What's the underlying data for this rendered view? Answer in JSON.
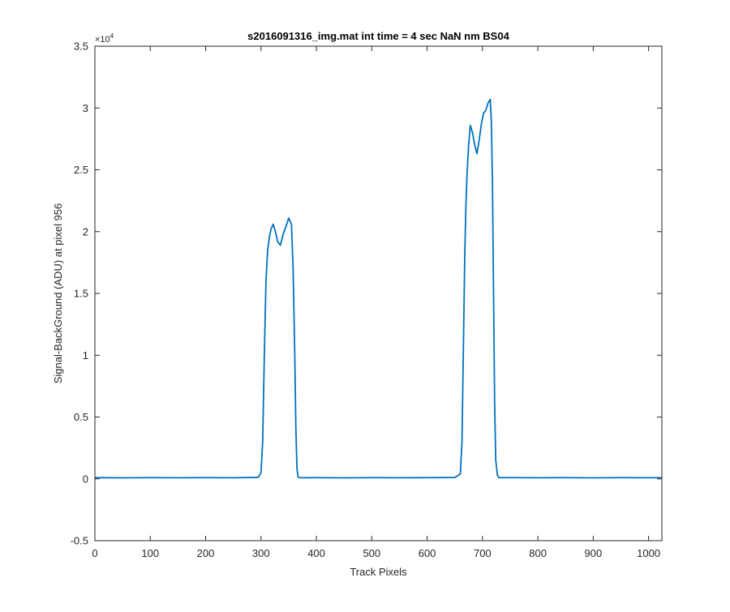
{
  "chart_data": {
    "type": "line",
    "title": "s2016091316_img.mat int time = 4 sec  NaN nm BS04",
    "xlabel": "Track Pixels",
    "ylabel": "Signal-BackGround (ADU) at pixel 956",
    "y_exponent_label": "×10",
    "y_exponent_power": "4",
    "xlim": [
      0,
      1024
    ],
    "ylim": [
      -5000,
      35000
    ],
    "x_ticks": [
      0,
      100,
      200,
      300,
      400,
      500,
      600,
      700,
      800,
      900,
      1000
    ],
    "x_tick_labels": [
      "0",
      "100",
      "200",
      "300",
      "400",
      "500",
      "600",
      "700",
      "800",
      "900",
      "1000"
    ],
    "y_ticks": [
      -5000,
      0,
      5000,
      10000,
      15000,
      20000,
      25000,
      30000,
      35000
    ],
    "y_tick_labels": [
      "-0.5",
      "0",
      "0.5",
      "1",
      "1.5",
      "2",
      "2.5",
      "3",
      "3.5"
    ],
    "grid": false,
    "line_color": "#0072BD",
    "series": [
      {
        "x": [
          0,
          50,
          100,
          150,
          200,
          250,
          295,
          300,
          303,
          306,
          309,
          312,
          315,
          318,
          322,
          326,
          330,
          335,
          340,
          345,
          350,
          355,
          358,
          361,
          363,
          365,
          367,
          370,
          375,
          400,
          450,
          500,
          550,
          600,
          650,
          660,
          663,
          666,
          668,
          670,
          672,
          675,
          678,
          682,
          686,
          690,
          694,
          698,
          702,
          706,
          710,
          714,
          716,
          718,
          720,
          722,
          724,
          727,
          730,
          740,
          800,
          850,
          900,
          950,
          1000,
          1024
        ],
        "y": [
          100,
          80,
          100,
          90,
          100,
          90,
          120,
          500,
          3000,
          10000,
          16000,
          18500,
          19500,
          20200,
          20600,
          20000,
          19200,
          18900,
          19800,
          20400,
          21100,
          20600,
          17000,
          10000,
          4000,
          800,
          150,
          100,
          90,
          100,
          80,
          100,
          90,
          100,
          110,
          400,
          3000,
          12000,
          18000,
          22000,
          24500,
          27000,
          28600,
          28000,
          27000,
          26300,
          27400,
          28700,
          29600,
          29800,
          30400,
          30700,
          29000,
          24000,
          15000,
          6000,
          1500,
          300,
          100,
          100,
          90,
          100,
          80,
          100,
          90,
          100
        ]
      }
    ]
  }
}
